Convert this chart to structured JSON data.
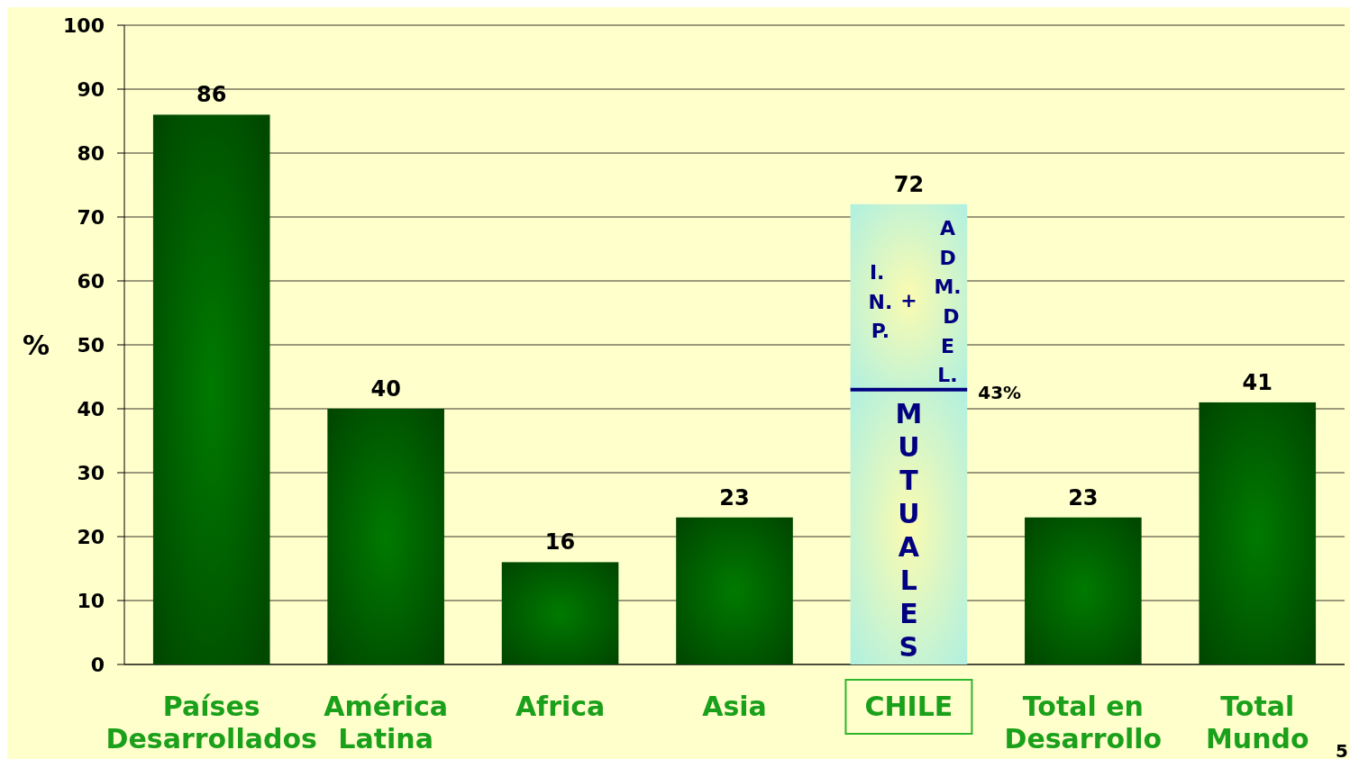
{
  "chart_data": {
    "type": "bar",
    "stacked": true,
    "categories": [
      "Países Desarrollados",
      "América Latina",
      "Africa",
      "Asia",
      "CHILE",
      "Total en Desarrollo",
      "Total Mundo"
    ],
    "series": [
      {
        "name": "MUTUALES",
        "colors": [
          "#007a00",
          "#007a00",
          "#007a00",
          "#007a00",
          "#fbfbb0",
          "#007a00",
          "#007a00"
        ],
        "values": [
          86,
          40,
          16,
          23,
          43,
          23,
          41
        ]
      },
      {
        "name": "I. N. P. + ADM. DEL.",
        "color": "#fbfbb0",
        "values": [
          null,
          null,
          null,
          null,
          29,
          null,
          null
        ]
      }
    ],
    "totals": [
      "86",
      "40",
      "16",
      "23",
      "72",
      "23",
      "41"
    ],
    "ylabel": "%",
    "ylim": [
      0,
      100
    ],
    "yticks": [
      0,
      10,
      20,
      30,
      40,
      50,
      60,
      70,
      80,
      90,
      100
    ],
    "grid": "y",
    "annotations": [
      "43%",
      "5"
    ]
  }
}
